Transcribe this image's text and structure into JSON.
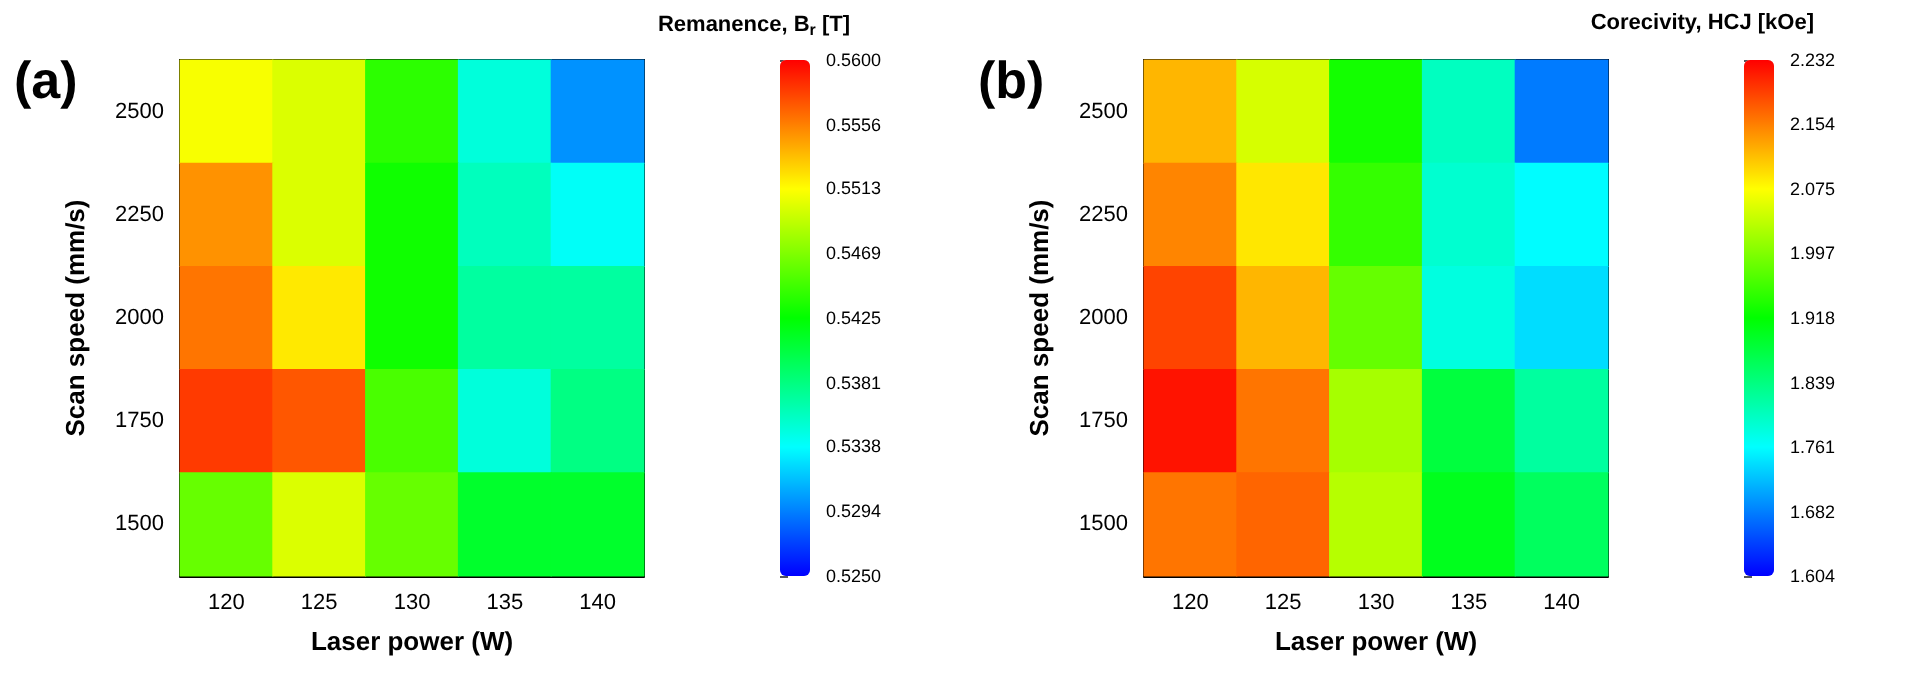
{
  "chart_data": [
    {
      "type": "heatmap",
      "title": "(a)",
      "xlabel": "Laser power (W)",
      "ylabel": "Scan speed (mm/s)",
      "clabel": "Remanence, B$_{r}$ [T]",
      "categories": [
        "120",
        "125",
        "130",
        "135",
        "140"
      ],
      "y_categories": [
        "2500",
        "2250",
        "2000",
        "1750",
        "1500"
      ],
      "cells": [
        [
          0.551,
          0.55,
          0.544,
          0.535,
          0.53
        ],
        [
          0.555,
          0.55,
          0.543,
          0.536,
          0.534
        ],
        [
          0.556,
          0.552,
          0.543,
          0.537,
          0.537
        ],
        [
          0.558,
          0.557,
          0.545,
          0.535,
          0.538
        ],
        [
          0.546,
          0.55,
          0.546,
          0.541,
          0.541
        ]
      ],
      "clim": [
        0.525,
        0.56
      ],
      "cticks": [
        {
          "value": 0.525,
          "label": "0.5250"
        },
        {
          "value": 0.5294,
          "label": "0.5294"
        },
        {
          "value": 0.5338,
          "label": "0.5338"
        },
        {
          "value": 0.5381,
          "label": "0.5381"
        },
        {
          "value": 0.5425,
          "label": "0.5425"
        },
        {
          "value": 0.5469,
          "label": "0.5469"
        },
        {
          "value": 0.5513,
          "label": "0.5513"
        },
        {
          "value": 0.5556,
          "label": "0.5556"
        },
        {
          "value": 0.56,
          "label": "0.5600"
        }
      ]
    },
    {
      "type": "heatmap",
      "title": "(b)",
      "xlabel": "Laser power (W)",
      "ylabel": "Scan speed (mm/s)",
      "clabel": "Corecivity, HCJ [kOe]",
      "categories": [
        "120",
        "125",
        "130",
        "135",
        "140"
      ],
      "y_categories": [
        "2500",
        "2250",
        "2000",
        "1750",
        "1500"
      ],
      "cells": [
        [
          2.12,
          2.05,
          1.93,
          1.8,
          1.68
        ],
        [
          2.15,
          2.09,
          1.95,
          1.79,
          1.76
        ],
        [
          2.19,
          2.12,
          1.98,
          1.78,
          1.74
        ],
        [
          2.22,
          2.16,
          2.02,
          1.88,
          1.82
        ],
        [
          2.16,
          2.17,
          2.03,
          1.9,
          1.86
        ]
      ],
      "clim": [
        1.604,
        2.232
      ],
      "cticks": [
        1.604,
        1.682,
        1.761,
        1.839,
        1.918,
        1.997,
        2.075,
        2.154,
        2.232
      ]
    }
  ]
}
